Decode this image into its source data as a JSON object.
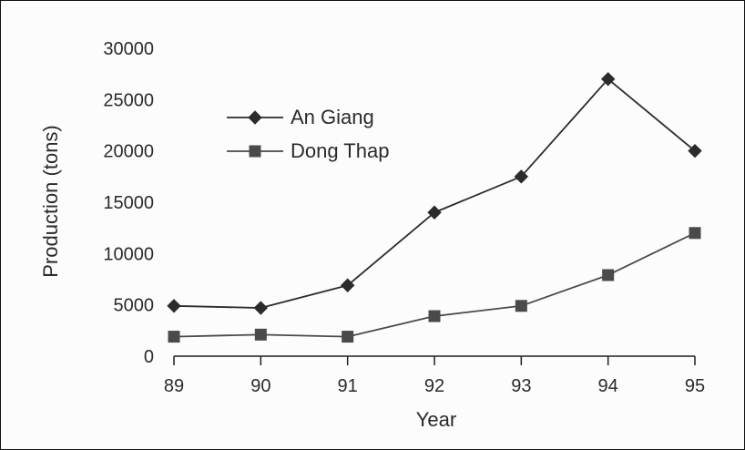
{
  "chart_data": {
    "type": "line",
    "title": "",
    "xlabel": "Year",
    "ylabel": "Production (tons)",
    "categories": [
      "89",
      "90",
      "91",
      "92",
      "93",
      "94",
      "95"
    ],
    "ylim": [
      0,
      30000
    ],
    "yticks": [
      0,
      5000,
      10000,
      15000,
      20000,
      25000,
      30000
    ],
    "grid": false,
    "legend_position": "upper-left",
    "series": [
      {
        "name": "An Giang",
        "marker": "diamond",
        "color": "#2b2b2b",
        "values": [
          4900,
          4700,
          6900,
          14000,
          17500,
          27000,
          20000
        ]
      },
      {
        "name": "Dong Thap",
        "marker": "square",
        "color": "#4a4a4a",
        "values": [
          1900,
          2100,
          1900,
          3900,
          4900,
          7900,
          12000
        ]
      }
    ]
  }
}
